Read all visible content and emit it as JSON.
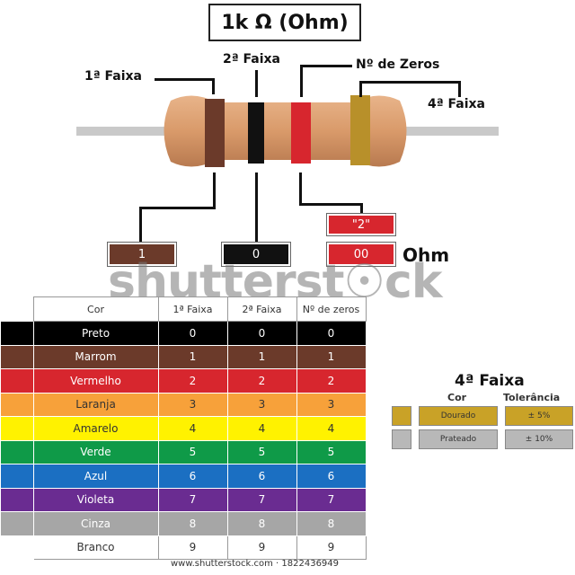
{
  "title": "1k Ω (Ohm)",
  "labels": {
    "band1": "1ª Faixa",
    "band2": "2ª Faixa",
    "zeros": "Nº de Zeros",
    "band4": "4ª Faixa"
  },
  "values": {
    "band1": "1",
    "band2": "0",
    "zeros_top": "\"2\"",
    "zeros": "00",
    "unit": "Ohm"
  },
  "watermark": "shutterst☉ck",
  "table": {
    "headers": [
      "Cor",
      "1ª Faixa",
      "2ª Faixa",
      "Nº de zeros"
    ],
    "rows": [
      {
        "name": "Preto",
        "b1": "0",
        "b2": "0",
        "z": "0",
        "color": "#000000",
        "text": "#ffffff"
      },
      {
        "name": "Marrom",
        "b1": "1",
        "b2": "1",
        "z": "1",
        "color": "#6b3a2a",
        "text": "#ffffff"
      },
      {
        "name": "Vermelho",
        "b1": "2",
        "b2": "2",
        "z": "2",
        "color": "#d7262e",
        "text": "#ffffff"
      },
      {
        "name": "Laranja",
        "b1": "3",
        "b2": "3",
        "z": "3",
        "color": "#f7a13a",
        "text": "#333333"
      },
      {
        "name": "Amarelo",
        "b1": "4",
        "b2": "4",
        "z": "4",
        "color": "#fff200",
        "text": "#333333"
      },
      {
        "name": "Verde",
        "b1": "5",
        "b2": "5",
        "z": "5",
        "color": "#0f9a48",
        "text": "#ffffff"
      },
      {
        "name": "Azul",
        "b1": "6",
        "b2": "6",
        "z": "6",
        "color": "#1b6fc2",
        "text": "#ffffff"
      },
      {
        "name": "Violeta",
        "b1": "7",
        "b2": "7",
        "z": "7",
        "color": "#6a2c91",
        "text": "#ffffff"
      },
      {
        "name": "Cinza",
        "b1": "8",
        "b2": "8",
        "z": "8",
        "color": "#a6a6a6",
        "text": "#ffffff"
      },
      {
        "name": "Branco",
        "b1": "9",
        "b2": "9",
        "z": "9",
        "color": "#ffffff",
        "text": "#333333"
      }
    ]
  },
  "tolerance": {
    "title": "4ª Faixa",
    "col_color": "Cor",
    "col_tol": "Tolerância",
    "rows": [
      {
        "name": "Dourado",
        "value": "± 5%",
        "color": "#c9a227"
      },
      {
        "name": "Prateado",
        "value": "± 10%",
        "color": "#b8b8b8"
      }
    ]
  },
  "footer": "www.shutterstock.com · 1822436949"
}
